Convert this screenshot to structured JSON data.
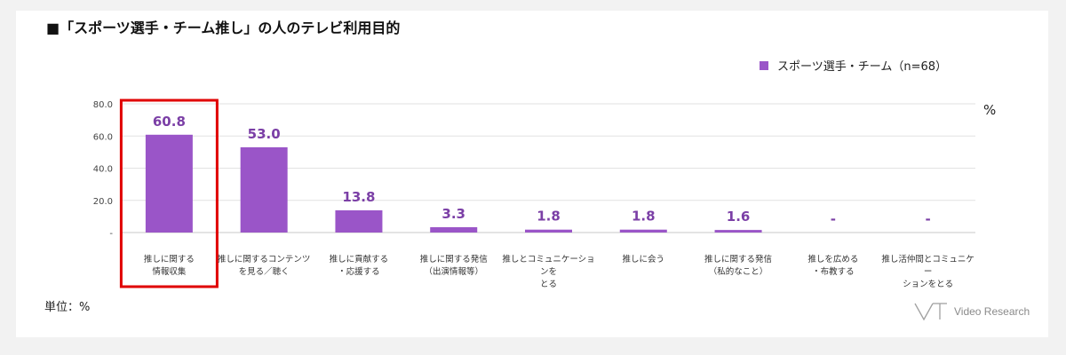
{
  "title": "■「スポーツ選手・チーム推し」の人のテレビ利用目的",
  "legend_label": "スポーツ選手・チーム（n=68）",
  "unit_symbol": "%",
  "unit_note": "単位：%",
  "logo_text": "Video Research",
  "chart_data": {
    "type": "bar",
    "categories": [
      "推しに関する\n情報収集",
      "推しに関するコンテンツ\nを見る／聴く",
      "推しに貢献する\n・応援する",
      "推しに関する発信\n（出演情報等）",
      "推しとコミュニケーションを\nとる",
      "推しに会う",
      "推しに関する発信\n（私的なこと）",
      "推しを広める\n・布教する",
      "推し活仲間とコミュニケー\nションをとる"
    ],
    "values": [
      60.8,
      53.0,
      13.8,
      3.3,
      1.8,
      1.8,
      1.6,
      0,
      0
    ],
    "value_labels": [
      "60.8",
      "53.0",
      "13.8",
      "3.3",
      "1.8",
      "1.8",
      "1.6",
      "-",
      "-"
    ],
    "yticks": [
      "-",
      "20.0",
      "40.0",
      "60.0",
      "80.0"
    ],
    "ylim": [
      0,
      80
    ],
    "bar_color": "#9a55c8",
    "label_color": "#7b3fa6",
    "highlight_color": "#e00000",
    "highlight_index": 0,
    "grid": true,
    "legend_position": "top-right"
  }
}
